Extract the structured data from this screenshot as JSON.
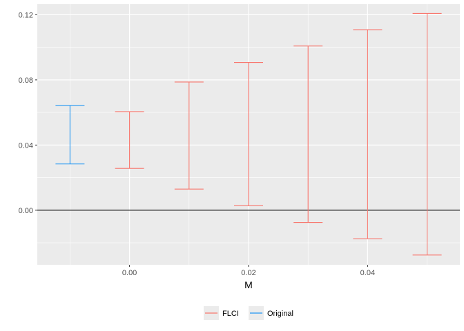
{
  "chart_data": {
    "type": "errorbar",
    "xlabel": "M",
    "ylabel": "",
    "title": "",
    "xlim": [
      -0.0155,
      0.0555
    ],
    "ylim": [
      -0.0335,
      0.1265
    ],
    "x_ticks": [
      {
        "value": 0.0,
        "label": "0.00"
      },
      {
        "value": 0.02,
        "label": "0.02"
      },
      {
        "value": 0.04,
        "label": "0.04"
      }
    ],
    "y_ticks": [
      {
        "value": 0.0,
        "label": "0.00"
      },
      {
        "value": 0.04,
        "label": "0.04"
      },
      {
        "value": 0.08,
        "label": "0.08"
      },
      {
        "value": 0.12,
        "label": "0.12"
      }
    ],
    "reference_line_y": 0.0,
    "grid": true,
    "legend_position": "bottom",
    "series": [
      {
        "name": "FLCI",
        "color": "#f8766d",
        "points": [
          {
            "x": 0.0,
            "lb": 0.0257,
            "ub": 0.0605
          },
          {
            "x": 0.01,
            "lb": 0.013,
            "ub": 0.0787
          },
          {
            "x": 0.02,
            "lb": 0.0027,
            "ub": 0.0907
          },
          {
            "x": 0.03,
            "lb": -0.0075,
            "ub": 0.1008
          },
          {
            "x": 0.04,
            "lb": -0.0175,
            "ub": 0.1108
          },
          {
            "x": 0.05,
            "lb": -0.0275,
            "ub": 0.1208
          }
        ]
      },
      {
        "name": "Original",
        "color": "#2196f3",
        "points": [
          {
            "x": -0.01,
            "lb": 0.0284,
            "ub": 0.0643
          }
        ]
      }
    ]
  }
}
